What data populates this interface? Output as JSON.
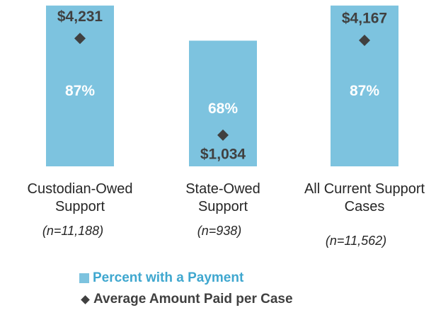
{
  "chart_data": {
    "type": "bar",
    "categories": [
      "Custodian-Owed Support",
      "State-Owed Support",
      "All Current Support Cases"
    ],
    "annotations": [
      "(n=11,188)",
      "(n=938)",
      "(n=11,562)"
    ],
    "ylim": [
      0,
      90
    ],
    "y2lim": [
      0,
      5500
    ],
    "series": [
      {
        "name": "Percent with a Payment",
        "type": "bar",
        "color": "#7dc3df",
        "values": [
          87,
          68,
          87
        ],
        "value_labels": [
          "87%",
          "68%",
          "87%"
        ]
      },
      {
        "name": "Average Amount Paid per Case",
        "type": "scatter",
        "axis": "y2",
        "color": "#404040",
        "values": [
          4231,
          1034,
          4167
        ],
        "value_labels": [
          "$4,231",
          "$1,034",
          "$4,167"
        ]
      }
    ]
  }
}
